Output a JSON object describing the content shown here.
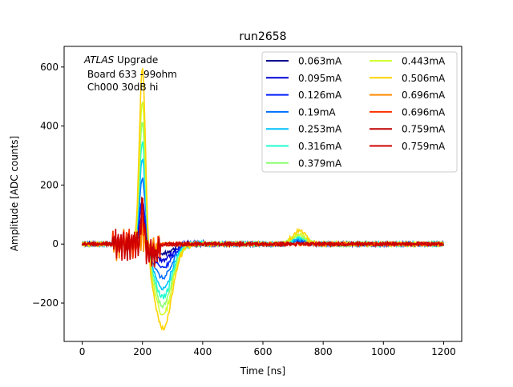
{
  "chart_data": {
    "type": "line",
    "title": "run2658",
    "xlabel": "Time [ns]",
    "ylabel": "Amplitude [ADC counts]",
    "xlim": [
      -60,
      1260
    ],
    "ylim": [
      -330,
      670
    ],
    "xticks": [
      0,
      200,
      400,
      600,
      800,
      1000,
      1200
    ],
    "yticks": [
      -200,
      0,
      200,
      400,
      600
    ],
    "ytick_labels": [
      "−200",
      "0",
      "200",
      "400",
      "600"
    ],
    "annotation": {
      "line1_italic": "ATLAS",
      "line1_rest": " Upgrade",
      "line2": " Board 633 -99ohm",
      "line3": " Ch000 30dB hi"
    },
    "legend": {
      "position": "upper right",
      "columns": 2
    },
    "series": [
      {
        "name": "0.063mA",
        "color": "#00008f",
        "peak": 60,
        "undershoot": -35,
        "bump": 5
      },
      {
        "name": "0.095mA",
        "color": "#0000d6",
        "peak": 100,
        "undershoot": -55,
        "bump": 8
      },
      {
        "name": "0.126mA",
        "color": "#0020ff",
        "peak": 150,
        "undershoot": -80,
        "bump": 10
      },
      {
        "name": "0.19mA",
        "color": "#0070ff",
        "peak": 230,
        "undershoot": -115,
        "bump": 15
      },
      {
        "name": "0.253mA",
        "color": "#00c0ff",
        "peak": 300,
        "undershoot": -150,
        "bump": 20
      },
      {
        "name": "0.316mA",
        "color": "#20ffd0",
        "peak": 360,
        "undershoot": -180,
        "bump": 25
      },
      {
        "name": "0.379mA",
        "color": "#8cff70",
        "peak": 430,
        "undershoot": -210,
        "bump": 30
      },
      {
        "name": "0.443mA",
        "color": "#d0ff30",
        "peak": 500,
        "undershoot": -240,
        "bump": 35
      },
      {
        "name": "0.506mA",
        "color": "#ffd200",
        "peak": 620,
        "undershoot": -285,
        "bump": 45
      },
      {
        "name": "0.696mA",
        "color": "#ff8c00",
        "peak": 40,
        "undershoot": -20,
        "bump": 0
      },
      {
        "name": "0.696mA",
        "color": "#ff3000",
        "peak": 90,
        "undershoot": -30,
        "bump": 0
      },
      {
        "name": "0.759mA",
        "color": "#c00000",
        "peak": 150,
        "undershoot": -35,
        "bump": 0
      },
      {
        "name": "0.759mA",
        "color": "#d00000",
        "peak": 140,
        "undershoot": -30,
        "bump": 0
      }
    ]
  }
}
